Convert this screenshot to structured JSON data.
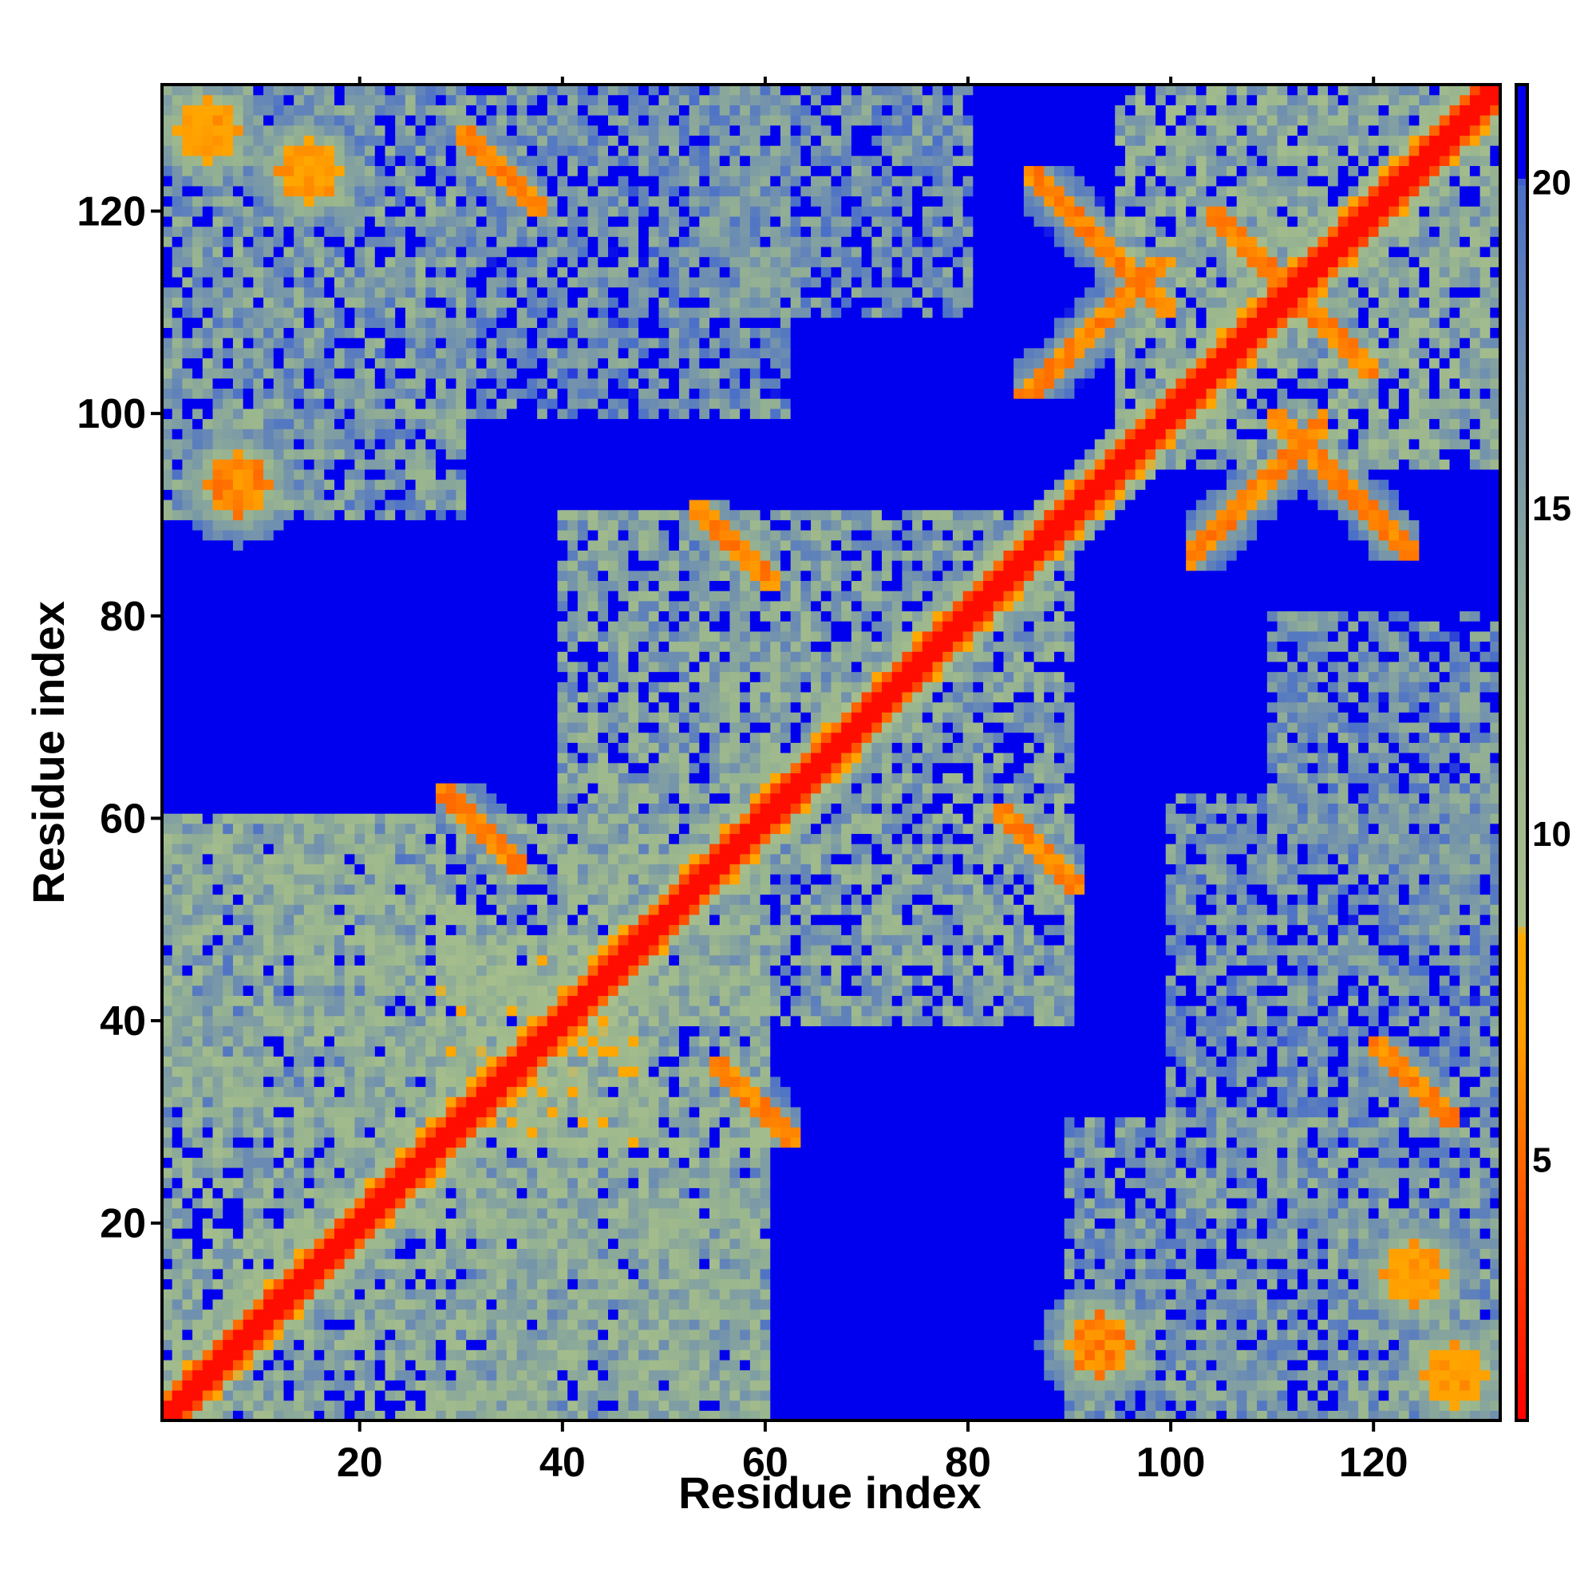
{
  "chart_data": {
    "type": "heatmap",
    "title": "",
    "xlabel": "Residue index",
    "ylabel": "Residue index",
    "n_residues": 132,
    "xlim": [
      1,
      132
    ],
    "ylim": [
      1,
      132
    ],
    "x_ticks": [
      20,
      40,
      60,
      80,
      100,
      120
    ],
    "y_ticks": [
      20,
      40,
      60,
      80,
      100,
      120
    ],
    "colorbar": {
      "ticks": [
        5,
        10,
        15,
        20
      ],
      "range": [
        1,
        21.5
      ],
      "stops": [
        {
          "value": 1.0,
          "color": "#ff0000"
        },
        {
          "value": 4.5,
          "color": "#ff5a00"
        },
        {
          "value": 7.0,
          "color": "#ffa000"
        },
        {
          "value": 8.5,
          "color": "#ffaa00"
        },
        {
          "value": 8.6,
          "color": "#a8bf8c"
        },
        {
          "value": 12.0,
          "color": "#9ab68e"
        },
        {
          "value": 17.0,
          "color": "#6f8fb0"
        },
        {
          "value": 20.0,
          "color": "#4a6fc9"
        },
        {
          "value": 20.1,
          "color": "#0000ee"
        },
        {
          "value": 21.5,
          "color": "#0000ee"
        }
      ]
    },
    "contact_features": [
      {
        "kind": "diagonal",
        "from": 1,
        "to": 132,
        "value": 1.5
      },
      {
        "kind": "block",
        "x": [
          1,
          60
        ],
        "y": [
          1,
          60
        ],
        "value": 12
      },
      {
        "kind": "block",
        "x": [
          28,
          48
        ],
        "y": [
          28,
          48
        ],
        "value": 10
      },
      {
        "kind": "block",
        "x": [
          40,
          90
        ],
        "y": [
          40,
          90
        ],
        "value": 13
      },
      {
        "kind": "block",
        "x": [
          95,
          132
        ],
        "y": [
          95,
          132
        ],
        "value": 12
      },
      {
        "kind": "antidiagonal",
        "x": [
          104,
          120
        ],
        "y": [
          104,
          120
        ],
        "center": 224,
        "value": 6
      },
      {
        "kind": "antidiagonal",
        "x": [
          86,
          100
        ],
        "y": [
          110,
          124
        ],
        "center": 210,
        "value": 6
      },
      {
        "kind": "antidiagonal",
        "x": [
          110,
          124
        ],
        "y": [
          86,
          100
        ],
        "center": 210,
        "value": 6
      },
      {
        "kind": "parallel",
        "x": [
          85,
          100
        ],
        "y": [
          102,
          115
        ],
        "offset": 16,
        "value": 6
      },
      {
        "kind": "parallel",
        "x": [
          102,
          115
        ],
        "y": [
          85,
          100
        ],
        "offset": -16,
        "value": 6
      },
      {
        "kind": "antidiagonal",
        "x": [
          53,
          61
        ],
        "y": [
          83,
          91
        ],
        "center": 144,
        "value": 6
      },
      {
        "kind": "antidiagonal",
        "x": [
          83,
          91
        ],
        "y": [
          53,
          61
        ],
        "center": 144,
        "value": 6
      },
      {
        "kind": "antidiagonal",
        "x": [
          28,
          36
        ],
        "y": [
          55,
          63
        ],
        "center": 91,
        "value": 6
      },
      {
        "kind": "antidiagonal",
        "x": [
          55,
          63
        ],
        "y": [
          28,
          36
        ],
        "center": 91,
        "value": 6
      },
      {
        "kind": "antidiagonal",
        "x": [
          30,
          38
        ],
        "y": [
          120,
          128
        ],
        "center": 158,
        "value": 6
      },
      {
        "kind": "antidiagonal",
        "x": [
          120,
          128
        ],
        "y": [
          30,
          38
        ],
        "center": 158,
        "value": 6
      },
      {
        "kind": "spot",
        "x": 8,
        "y": 93,
        "r": 3,
        "value": 6
      },
      {
        "kind": "spot",
        "x": 93,
        "y": 8,
        "r": 3,
        "value": 6
      },
      {
        "kind": "spot",
        "x": 15,
        "y": 124,
        "r": 3,
        "value": 7
      },
      {
        "kind": "spot",
        "x": 124,
        "y": 15,
        "r": 3,
        "value": 7
      },
      {
        "kind": "spot",
        "x": 5,
        "y": 128,
        "r": 3,
        "value": 7
      },
      {
        "kind": "spot",
        "x": 128,
        "y": 5,
        "r": 3,
        "value": 7
      },
      {
        "kind": "block",
        "x": [
          1,
          30
        ],
        "y": [
          90,
          132
        ],
        "value": 14
      },
      {
        "kind": "block",
        "x": [
          90,
          132
        ],
        "y": [
          1,
          30
        ],
        "value": 14
      },
      {
        "kind": "block",
        "x": [
          30,
          62
        ],
        "y": [
          100,
          132
        ],
        "value": 15
      },
      {
        "kind": "block",
        "x": [
          100,
          132
        ],
        "y": [
          30,
          62
        ],
        "value": 15
      },
      {
        "kind": "block",
        "x": [
          1,
          26
        ],
        "y": [
          30,
          60
        ],
        "value": 14
      },
      {
        "kind": "block",
        "x": [
          30,
          60
        ],
        "y": [
          1,
          26
        ],
        "value": 14
      },
      {
        "kind": "block",
        "x": [
          110,
          132
        ],
        "y": [
          55,
          80
        ],
        "value": 15
      },
      {
        "kind": "block",
        "x": [
          55,
          80
        ],
        "y": [
          110,
          132
        ],
        "value": 15
      }
    ]
  }
}
